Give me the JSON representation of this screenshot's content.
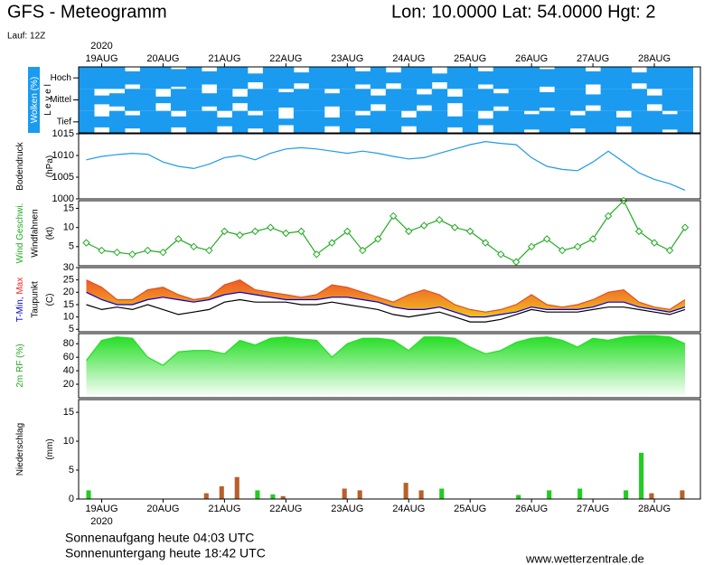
{
  "header": {
    "title": "GFS - Meteogramm",
    "location": "Lon: 10.0000 Lat: 54.0000 Hgt: 2",
    "run": "Lauf: 12Z"
  },
  "footer": {
    "sunrise": "Sonnenaufgang heute 04:03 UTC",
    "sunset": "Sonnenuntergang heute 18:42 UTC",
    "source": "www.wetterzentrale.de"
  },
  "chart_data": {
    "type": "meteogram",
    "year": "2020",
    "x": [
      -6,
      0,
      6,
      12,
      18,
      24,
      30,
      36,
      42,
      48,
      54,
      60,
      66,
      72,
      78,
      84,
      90,
      96,
      102,
      108,
      114,
      120,
      126,
      132,
      138,
      144,
      150,
      156,
      162,
      168,
      174,
      180,
      186,
      192,
      198,
      204,
      210,
      216,
      222,
      228
    ],
    "xlim": [
      -9,
      234
    ],
    "xticks": [
      {
        "value": 0,
        "label": "19AUG"
      },
      {
        "value": 24,
        "label": "20AUG"
      },
      {
        "value": 48,
        "label": "21AUG"
      },
      {
        "value": 72,
        "label": "22AUG"
      },
      {
        "value": 96,
        "label": "23AUG"
      },
      {
        "value": 120,
        "label": "24AUG"
      },
      {
        "value": 144,
        "label": "25AUG"
      },
      {
        "value": 168,
        "label": "26AUG"
      },
      {
        "value": 192,
        "label": "27AUG"
      },
      {
        "value": 216,
        "label": "28AUG"
      }
    ],
    "panels": [
      {
        "type": "clouds",
        "ylabel": [
          [
            {
              "text": "Wolken (%)",
              "color": "#ffffff",
              "background": "#1a9bf0"
            }
          ],
          [
            {
              "text": "L e v e l"
            }
          ]
        ],
        "ylim": [
          0,
          100
        ],
        "series": [
          {
            "name": "Hoch",
            "color": "#1a9bf0",
            "values": [
              100,
              100,
              100,
              60,
              100,
              100,
              80,
              100,
              60,
              100,
              100,
              40,
              100,
              100,
              50,
              100,
              100,
              100,
              60,
              100,
              50,
              100,
              100,
              40,
              100,
              100,
              60,
              100,
              100,
              100,
              80,
              100,
              100,
              60,
              100,
              100,
              50,
              100,
              100,
              100
            ]
          },
          {
            "name": "Mittel",
            "color": "#1a9bf0",
            "values": [
              100,
              40,
              60,
              100,
              100,
              30,
              100,
              100,
              60,
              100,
              30,
              100,
              100,
              70,
              100,
              100,
              60,
              100,
              100,
              40,
              100,
              100,
              50,
              100,
              30,
              100,
              100,
              60,
              100,
              100,
              70,
              100,
              100,
              50,
              100,
              100,
              100,
              40,
              100,
              100
            ]
          },
          {
            "name": "Tief",
            "color": "#1a9bf0",
            "values": [
              100,
              50,
              100,
              60,
              100,
              100,
              50,
              100,
              100,
              40,
              100,
              60,
              100,
              30,
              100,
              100,
              40,
              100,
              60,
              100,
              100,
              40,
              100,
              100,
              50,
              100,
              30,
              100,
              100,
              70,
              100,
              100,
              60,
              100,
              100,
              40,
              100,
              100,
              70,
              100
            ]
          }
        ]
      },
      {
        "type": "line",
        "ylabel": [
          [
            {
              "text": "Bodendruck"
            }
          ],
          [
            {
              "text": "(hPa)"
            }
          ]
        ],
        "ylim": [
          1000,
          1015
        ],
        "yticks": [
          1000,
          1005,
          1010,
          1015
        ],
        "series": [
          {
            "color": "#1f9ae8",
            "values": [
              1009,
              1009.8,
              1010.2,
              1010.5,
              1010.3,
              1008.5,
              1007.5,
              1007,
              1008,
              1009.5,
              1010,
              1009,
              1010.5,
              1011.5,
              1011.8,
              1011.5,
              1011,
              1010.5,
              1011,
              1010.5,
              1009.8,
              1009.2,
              1009.5,
              1010.5,
              1011.5,
              1012.5,
              1013.2,
              1012.8,
              1012.5,
              1009.5,
              1007.5,
              1006.8,
              1006.5,
              1008.5,
              1011,
              1008.5,
              1006,
              1004.5,
              1003.5,
              1002
            ]
          }
        ]
      },
      {
        "type": "wind",
        "ylabel": [
          [
            {
              "text": "Wind Geschwi.",
              "color": "#22aa22"
            }
          ],
          [
            {
              "text": "Windfahnen"
            }
          ],
          [
            {
              "text": "(kt)"
            }
          ]
        ],
        "ylim": [
          0,
          17
        ],
        "yticks": [
          5,
          10,
          15
        ],
        "series": [
          {
            "color": "#22aa22",
            "values": [
              6,
              4,
              3.5,
              3,
              4,
              3.5,
              7,
              5,
              4,
              9,
              8,
              9,
              10,
              8.5,
              9,
              3,
              6,
              9,
              4,
              7,
              13,
              9,
              10.5,
              12,
              10,
              9,
              6,
              3,
              1,
              5,
              7,
              4,
              5,
              7,
              13,
              17,
              9,
              6,
              4,
              10
            ]
          }
        ]
      },
      {
        "type": "temperature",
        "ylabel": [
          [
            {
              "text": "T-Min,",
              "color": "#0000cc"
            },
            {
              "text": " Max",
              "color": "#ff2020"
            }
          ],
          [
            {
              "text": "Taupunkt"
            }
          ],
          [
            {
              "text": "(C)"
            }
          ]
        ],
        "ylim": [
          4,
          30
        ],
        "yticks": [
          5,
          10,
          15,
          20,
          25,
          30
        ],
        "fill": [
          "#f05a28",
          "#f0c020"
        ],
        "series": [
          {
            "color": "#e05020",
            "values": [
              25,
              22,
              17,
              17,
              21,
              22,
              19,
              17,
              18,
              23,
              25,
              21,
              20,
              19,
              18,
              19,
              23,
              22,
              20,
              18,
              16,
              19,
              21,
              19,
              15,
              13,
              12,
              13,
              15,
              19,
              15,
              14,
              15,
              17,
              20,
              21,
              16,
              14,
              13,
              17
            ]
          },
          {
            "color": "#0000cc",
            "values": [
              20,
              17,
              15,
              15,
              17,
              18,
              17,
              16,
              17,
              19,
              20,
              19,
              18,
              17,
              17,
              17,
              18,
              18,
              17,
              16,
              14,
              13,
              13,
              14,
              12,
              10,
              10,
              11,
              12,
              14,
              13,
              13,
              13,
              14,
              16,
              16,
              14,
              13,
              12,
              14
            ]
          },
          {
            "color": "#000000",
            "values": [
              15,
              13,
              14,
              13,
              15,
              13,
              11,
              12,
              13,
              16,
              17,
              16,
              16,
              16,
              15,
              15,
              16,
              15,
              14,
              13,
              11,
              10,
              11,
              12,
              10,
              8,
              8,
              9,
              11,
              13,
              12,
              12,
              12,
              13,
              14,
              14,
              13,
              12,
              11,
              13
            ]
          }
        ]
      },
      {
        "type": "area",
        "ylabel": [
          [
            {
              "text": "2m RF (%)",
              "color": "#22aa22"
            }
          ]
        ],
        "ylim": [
          0,
          95
        ],
        "yticks": [
          20,
          40,
          60,
          80
        ],
        "color": "#22dd22",
        "series": [
          {
            "color": "#22dd22",
            "values": [
              55,
              85,
              90,
              88,
              60,
              48,
              68,
              70,
              70,
              65,
              85,
              78,
              88,
              90,
              87,
              85,
              60,
              80,
              88,
              88,
              85,
              70,
              90,
              90,
              88,
              75,
              65,
              70,
              82,
              88,
              90,
              85,
              75,
              88,
              85,
              90,
              92,
              92,
              90,
              80
            ]
          }
        ]
      },
      {
        "type": "bar",
        "ylabel": [
          [
            {
              "text": "Niederschlag"
            }
          ],
          [
            {
              "text": "(mm)"
            }
          ]
        ],
        "ylim": [
          0,
          17.2
        ],
        "yticks": [
          0,
          5,
          10,
          15
        ],
        "series": [
          {
            "color": "#b8602a",
            "values": [
              0,
              0,
              0,
              0,
              0,
              0,
              0,
              0,
              1,
              2.2,
              3.8,
              0,
              0,
              0.5,
              0,
              0,
              0,
              1.8,
              1.5,
              0,
              0,
              2.8,
              1.5,
              0,
              0,
              0,
              0,
              0,
              0,
              0,
              0,
              0,
              0,
              0,
              0,
              0,
              0,
              1,
              0,
              1.5
            ]
          },
          {
            "color": "#22cc22",
            "values": [
              1.5,
              0,
              0,
              0,
              0,
              0,
              0,
              0,
              0,
              0,
              0,
              1.5,
              0.8,
              0,
              0,
              0,
              0,
              0,
              0,
              0,
              0,
              0,
              0,
              1.8,
              0,
              0,
              0,
              0,
              0.7,
              0,
              1.5,
              0,
              1.8,
              0,
              0,
              1.5,
              8,
              0,
              0,
              0
            ]
          }
        ]
      }
    ]
  }
}
